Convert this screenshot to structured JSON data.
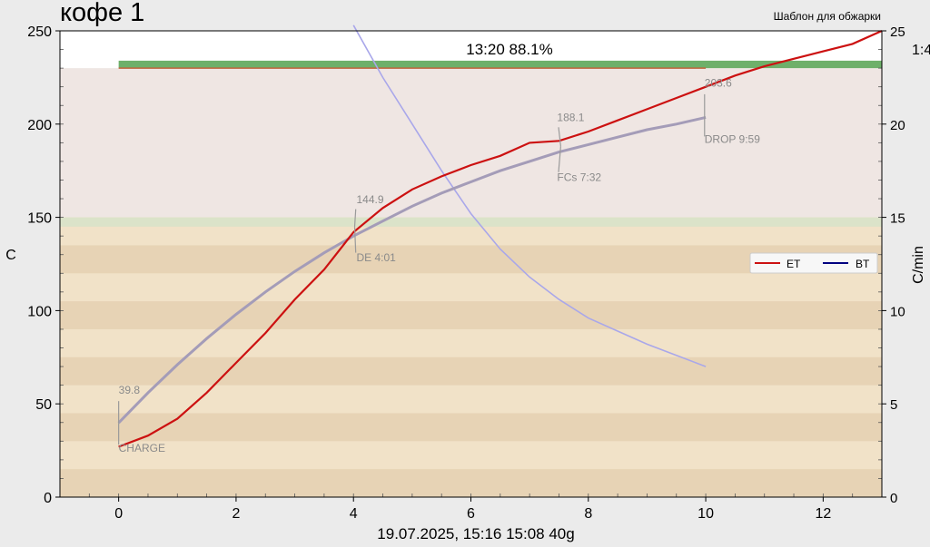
{
  "header": {
    "title": "кофе 1",
    "template_label": "Шаблон для обжарки",
    "progress_text": "13:20  88.1%",
    "right_readout": "1:4"
  },
  "footer": {
    "caption": "19.07.2025, 15:16   15:08   40g"
  },
  "colors": {
    "plot_bg_upper": "#efe6e3",
    "plot_bg_lower": "#f1e2c8",
    "stripe": "#e7d3b5",
    "et": "#cc1111",
    "bt": "#000080",
    "bt_plot": "#a49cb8",
    "ror": "#a9a7ea",
    "phase_green": "#6eb06a",
    "phase_band": "#dbe3c9"
  },
  "chart_data": {
    "type": "line",
    "xlim": [
      -1,
      13
    ],
    "ylim": [
      0,
      250
    ],
    "y2lim": [
      0,
      25
    ],
    "xticks": [
      0,
      2,
      4,
      6,
      8,
      10,
      12
    ],
    "yticks": [
      0,
      50,
      100,
      150,
      200,
      250
    ],
    "y2ticks": [
      0,
      5,
      10,
      15,
      20,
      25
    ],
    "xlabel": "",
    "ylabel": "C",
    "y2label": "C/min",
    "legend": {
      "position": "right",
      "entries": [
        "ET",
        "BT"
      ]
    },
    "series": [
      {
        "name": "ET",
        "axis": "left",
        "x": [
          0,
          0.5,
          1,
          1.5,
          2,
          2.5,
          3,
          3.5,
          4,
          4.5,
          5,
          5.5,
          6,
          6.5,
          7,
          7.5,
          8,
          8.5,
          9,
          9.5,
          10,
          10.5,
          11,
          11.5,
          12,
          12.5,
          13
        ],
        "y": [
          27,
          33,
          42,
          56,
          72,
          88,
          106,
          122,
          142,
          155,
          165,
          172,
          178,
          183,
          190,
          191,
          196,
          202,
          208,
          214,
          220,
          226,
          231,
          235,
          239,
          243,
          250
        ]
      },
      {
        "name": "BT",
        "axis": "left",
        "x": [
          0,
          0.5,
          1,
          1.5,
          2,
          2.5,
          3,
          3.5,
          4,
          4.5,
          5,
          5.5,
          6,
          6.5,
          7,
          7.5,
          8,
          8.5,
          9,
          9.5,
          10
        ],
        "y": [
          39.8,
          56,
          71,
          85,
          98,
          110,
          121,
          131,
          140,
          148,
          156,
          163,
          169,
          175,
          180,
          185,
          189,
          193,
          197,
          200,
          203.6
        ]
      },
      {
        "name": "RoR",
        "axis": "right",
        "x": [
          4,
          4.5,
          5,
          5.5,
          6,
          6.5,
          7,
          7.5,
          8,
          8.5,
          9,
          9.5,
          10
        ],
        "y": [
          25.3,
          22.5,
          20.0,
          17.5,
          15.2,
          13.3,
          11.8,
          10.6,
          9.6,
          8.9,
          8.2,
          7.6,
          7.0
        ]
      }
    ],
    "annotations": [
      {
        "label": "39.8",
        "x": 0,
        "y": 39.8
      },
      {
        "label": "CHARGE",
        "x": 0,
        "y": 39.8
      },
      {
        "label": "144.9",
        "x": 4.02,
        "y": 144.9
      },
      {
        "label": "DE 4:01",
        "x": 4.02,
        "y": 144.9
      },
      {
        "label": "188.1",
        "x": 7.53,
        "y": 188.1
      },
      {
        "label": "FCs 7:32",
        "x": 7.53,
        "y": 188.1
      },
      {
        "label": "203.6",
        "x": 9.98,
        "y": 203.6
      },
      {
        "label": "DROP 9:59",
        "x": 9.98,
        "y": 203.6
      }
    ],
    "phases": {
      "drying_end": 150,
      "maillard_top": 230
    }
  }
}
